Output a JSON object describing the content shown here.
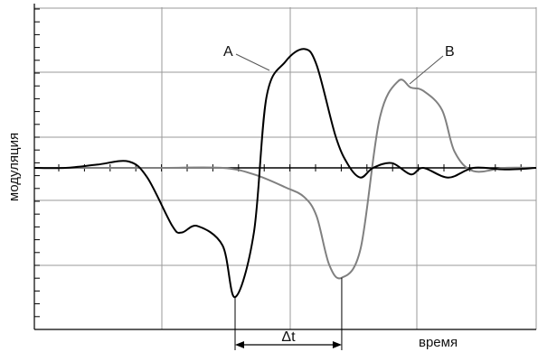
{
  "chart_data": {
    "type": "line",
    "xlabel": "время",
    "ylabel": "модуляция",
    "grid": true,
    "xlim": [
      0,
      8
    ],
    "ylim": [
      -5,
      5
    ],
    "series": [
      {
        "name": "A",
        "color": "#000000",
        "x": [
          0,
          0.5,
          1,
          1.5,
          1.8,
          2.2,
          2.35,
          2.6,
          3.0,
          3.2,
          3.5,
          3.7,
          4.0,
          4.3,
          4.5,
          4.8,
          5.0,
          5.2,
          5.4,
          5.7,
          6.0,
          6.2,
          6.6,
          7.0,
          7.5,
          8.0
        ],
        "y": [
          0,
          0,
          0.1,
          0.2,
          -0.3,
          -1.8,
          -2.0,
          -1.8,
          -2.4,
          -4.0,
          -2.0,
          2.2,
          3.3,
          3.7,
          3.2,
          1.0,
          0.1,
          -0.3,
          0,
          0.15,
          -0.2,
          0,
          -0.3,
          0,
          -0.05,
          0
        ]
      },
      {
        "name": "B",
        "color": "#808080",
        "x": [
          0,
          1,
          2,
          3.0,
          3.5,
          4.0,
          4.3,
          4.5,
          4.7,
          4.9,
          5.2,
          5.5,
          5.8,
          6.0,
          6.2,
          6.5,
          6.7,
          7.0,
          7.5,
          8.0
        ],
        "y": [
          0,
          0,
          0,
          0,
          -0.2,
          -0.6,
          -0.9,
          -1.5,
          -3.0,
          -3.4,
          -2.5,
          1.5,
          2.7,
          2.5,
          2.4,
          1.8,
          0.5,
          -0.1,
          0,
          0
        ]
      }
    ],
    "annotations": [
      {
        "text": "A",
        "series": "A"
      },
      {
        "text": "B",
        "series": "B"
      },
      {
        "text": "Δt",
        "from_x": 3.2,
        "to_x": 4.9
      }
    ]
  }
}
